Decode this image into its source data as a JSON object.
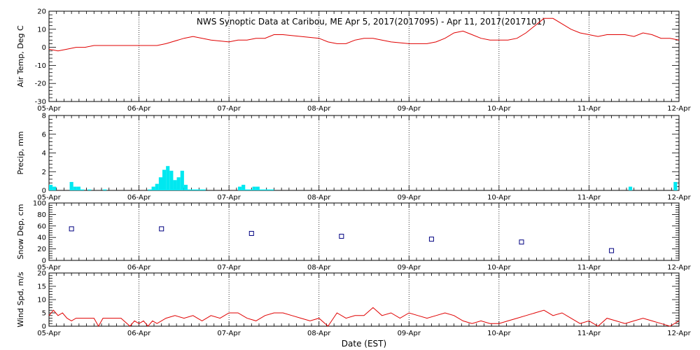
{
  "title": "NWS Synoptic Data at Caribou, ME   Apr  5, 2017(2017095) - Apr 11, 2017(2017101)",
  "xlabel": "Date (EST)",
  "colors": {
    "temp_line": "#e00000",
    "precip_bar": "#00e8f0",
    "snow_marker": "#000080",
    "wind_line": "#e00000"
  },
  "chart_data": [
    {
      "type": "line",
      "ylabel": "Air Temp, Deg C",
      "ylim": [
        -30,
        20
      ],
      "yticks": [
        -30,
        -20,
        -10,
        0,
        10,
        20
      ],
      "xlim": [
        0,
        7
      ],
      "xticks": [
        "05-Apr",
        "06-Apr",
        "07-Apr",
        "08-Apr",
        "09-Apr",
        "10-Apr",
        "11-Apr",
        "12-Apr"
      ],
      "grid": true,
      "x": [
        0,
        0.1,
        0.2,
        0.3,
        0.4,
        0.5,
        0.7,
        0.9,
        1.0,
        1.2,
        1.3,
        1.5,
        1.6,
        1.8,
        2.0,
        2.1,
        2.2,
        2.3,
        2.4,
        2.5,
        2.6,
        2.8,
        3.0,
        3.1,
        3.2,
        3.3,
        3.4,
        3.5,
        3.6,
        3.8,
        4.0,
        4.1,
        4.2,
        4.3,
        4.4,
        4.5,
        4.6,
        4.7,
        4.8,
        4.9,
        5.0,
        5.1,
        5.2,
        5.3,
        5.4,
        5.5,
        5.6,
        5.7,
        5.8,
        5.9,
        6.0,
        6.1,
        6.2,
        6.3,
        6.4,
        6.5,
        6.6,
        6.7,
        6.8,
        6.9,
        7.0
      ],
      "y": [
        -1,
        -2,
        -1,
        0,
        0,
        1,
        1,
        1,
        1,
        1,
        2,
        5,
        6,
        4,
        3,
        4,
        4,
        5,
        5,
        7,
        7,
        6,
        5,
        3,
        2,
        2,
        4,
        5,
        5,
        3,
        2,
        2,
        2,
        3,
        5,
        8,
        9,
        7,
        5,
        4,
        4,
        4,
        5,
        8,
        12,
        16,
        16,
        13,
        10,
        8,
        7,
        6,
        7,
        7,
        7,
        6,
        8,
        7,
        5,
        5,
        4
      ]
    },
    {
      "type": "bar",
      "ylabel": "Precip, mm",
      "ylim": [
        0,
        8
      ],
      "yticks": [
        0,
        2,
        4,
        6,
        8
      ],
      "xlim": [
        0,
        7
      ],
      "xticks": [
        "05-Apr",
        "06-Apr",
        "07-Apr",
        "08-Apr",
        "09-Apr",
        "10-Apr",
        "11-Apr",
        "12-Apr"
      ],
      "grid": true,
      "x": [
        0.02,
        0.06,
        0.25,
        0.29,
        0.33,
        0.37,
        0.45,
        0.62,
        1.12,
        1.16,
        1.2,
        1.24,
        1.28,
        1.32,
        1.36,
        1.4,
        1.44,
        1.48,
        1.52,
        1.56,
        1.6,
        1.64,
        1.68,
        1.72,
        2.12,
        2.16,
        2.2,
        2.24,
        2.28,
        2.32,
        2.36,
        2.4,
        2.44,
        2.48,
        6.46,
        6.96
      ],
      "y": [
        0.6,
        0.4,
        0.9,
        0.4,
        0.4,
        0.1,
        0.1,
        0.1,
        0.1,
        0.4,
        0.7,
        1.4,
        2.2,
        2.6,
        2.1,
        1.1,
        1.4,
        2.1,
        0.6,
        0.1,
        0.1,
        0.1,
        0.1,
        0.1,
        0.4,
        0.6,
        0.1,
        0.1,
        0.4,
        0.4,
        0.1,
        0.1,
        0.1,
        0.1,
        0.4,
        0.9
      ],
      "bar_width": 0.04
    },
    {
      "type": "scatter",
      "ylabel": "Snow Dep, cm",
      "ylim": [
        0,
        100
      ],
      "yticks": [
        0,
        20,
        40,
        60,
        80,
        100
      ],
      "xlim": [
        0,
        7
      ],
      "xticks": [
        "05-Apr",
        "06-Apr",
        "07-Apr",
        "08-Apr",
        "09-Apr",
        "10-Apr",
        "11-Apr",
        "12-Apr"
      ],
      "grid": true,
      "x": [
        0.25,
        1.25,
        2.25,
        3.25,
        4.25,
        5.25,
        6.25
      ],
      "y": [
        55,
        55,
        47,
        42,
        37,
        32,
        17
      ]
    },
    {
      "type": "line",
      "ylabel": "Wind Spd, m/s",
      "ylim": [
        0,
        20
      ],
      "yticks": [
        0,
        5,
        10,
        15,
        20
      ],
      "xlim": [
        0,
        7
      ],
      "xticks": [
        "05-Apr",
        "06-Apr",
        "07-Apr",
        "08-Apr",
        "09-Apr",
        "10-Apr",
        "11-Apr",
        "12-Apr"
      ],
      "grid": true,
      "x": [
        0,
        0.05,
        0.1,
        0.15,
        0.2,
        0.25,
        0.3,
        0.4,
        0.5,
        0.55,
        0.6,
        0.7,
        0.8,
        0.9,
        0.95,
        1.0,
        1.05,
        1.1,
        1.15,
        1.2,
        1.3,
        1.4,
        1.5,
        1.6,
        1.7,
        1.8,
        1.9,
        2.0,
        2.1,
        2.2,
        2.3,
        2.4,
        2.5,
        2.6,
        2.7,
        2.8,
        2.9,
        3.0,
        3.1,
        3.2,
        3.3,
        3.4,
        3.5,
        3.6,
        3.7,
        3.8,
        3.9,
        4.0,
        4.1,
        4.2,
        4.3,
        4.4,
        4.5,
        4.6,
        4.7,
        4.8,
        4.9,
        5.0,
        5.1,
        5.2,
        5.3,
        5.4,
        5.5,
        5.6,
        5.7,
        5.8,
        5.9,
        6.0,
        6.1,
        6.2,
        6.3,
        6.4,
        6.5,
        6.6,
        6.7,
        6.8,
        6.9,
        7.0
      ],
      "y": [
        4,
        6,
        4,
        5,
        3,
        2,
        3,
        3,
        3,
        0,
        3,
        3,
        3,
        0,
        2,
        1,
        2,
        0,
        2,
        1,
        3,
        4,
        3,
        4,
        2,
        4,
        3,
        5,
        5,
        3,
        2,
        4,
        5,
        5,
        4,
        3,
        2,
        3,
        0,
        5,
        3,
        4,
        4,
        7,
        4,
        5,
        3,
        5,
        4,
        3,
        4,
        5,
        4,
        2,
        1,
        2,
        1,
        1,
        2,
        3,
        4,
        5,
        6,
        4,
        5,
        3,
        1,
        2,
        0,
        3,
        2,
        1,
        2,
        3,
        2,
        1,
        0,
        2
      ]
    }
  ]
}
